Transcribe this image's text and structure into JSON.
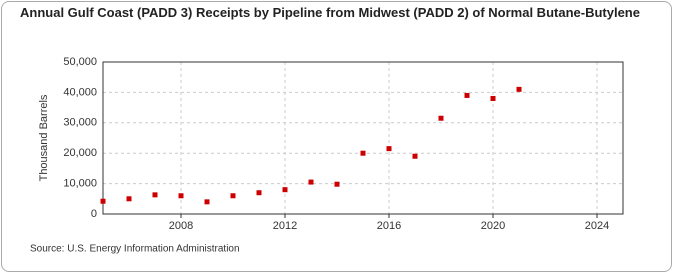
{
  "chart_data": {
    "type": "scatter",
    "title": "Annual Gulf Coast (PADD 3) Receipts by Pipeline from Midwest (PADD 2) of Normal Butane-Butylene",
    "y_label": "Thousand Barrels",
    "source": "Source: U.S. Energy Information Administration",
    "x": [
      2005,
      2006,
      2007,
      2008,
      2009,
      2010,
      2011,
      2012,
      2013,
      2014,
      2015,
      2016,
      2017,
      2018,
      2019,
      2020,
      2021
    ],
    "values": [
      4200,
      5000,
      6300,
      6000,
      4000,
      6000,
      7000,
      8000,
      10500,
      9800,
      20000,
      21500,
      19000,
      31500,
      39000,
      38000,
      41000
    ],
    "color": "#cc0000",
    "xlim": [
      2005,
      2025
    ],
    "xticks": [
      2008,
      2012,
      2016,
      2020,
      2024
    ],
    "ylim": [
      0,
      50000
    ],
    "yticks": [
      0,
      {
        "value": 10000,
        "label": "10,000"
      },
      {
        "value": 20000,
        "label": "20,000"
      },
      {
        "value": 30000,
        "label": "30,000"
      },
      {
        "value": 40000,
        "label": "40,000"
      },
      {
        "value": 50000,
        "label": "50,000"
      }
    ],
    "grid": true
  }
}
